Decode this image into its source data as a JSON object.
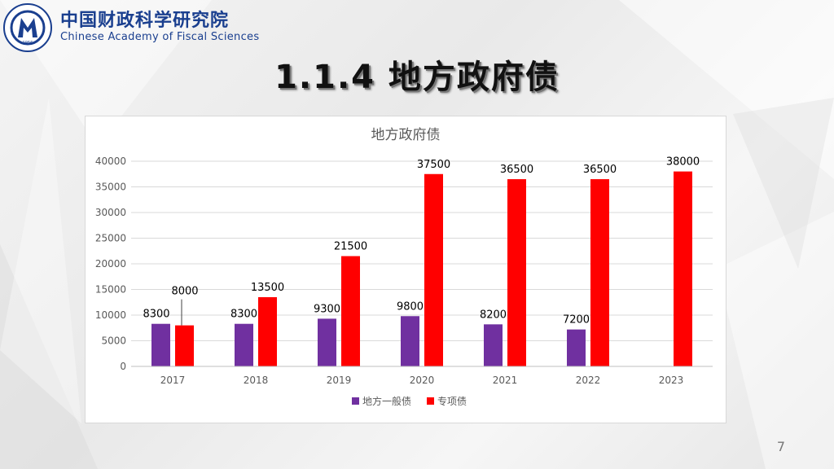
{
  "header": {
    "org_cn": "中国财政科学研究院",
    "org_en": "Chinese Academy of Fiscal Sciences",
    "seal_year": "1956"
  },
  "slide": {
    "title": "1.1.4 地方政府债",
    "page_number": "7"
  },
  "colors": {
    "general_bond": "#7030a0",
    "special_bond": "#ff0000",
    "brand": "#1a3f8f"
  },
  "chart_data": {
    "type": "bar",
    "title": "地方政府债",
    "categories": [
      "2017",
      "2018",
      "2019",
      "2020",
      "2021",
      "2022",
      "2023"
    ],
    "series": [
      {
        "name": "地方一般债",
        "values": [
          8300,
          8300,
          9300,
          9800,
          8200,
          7200,
          null
        ]
      },
      {
        "name": "专项债",
        "values": [
          8000,
          13500,
          21500,
          37500,
          36500,
          36500,
          38000
        ]
      }
    ],
    "ylim": [
      0,
      40000
    ],
    "yticks": [
      0,
      5000,
      10000,
      15000,
      20000,
      25000,
      30000,
      35000,
      40000
    ],
    "grid": true,
    "legend_position": "bottom"
  }
}
